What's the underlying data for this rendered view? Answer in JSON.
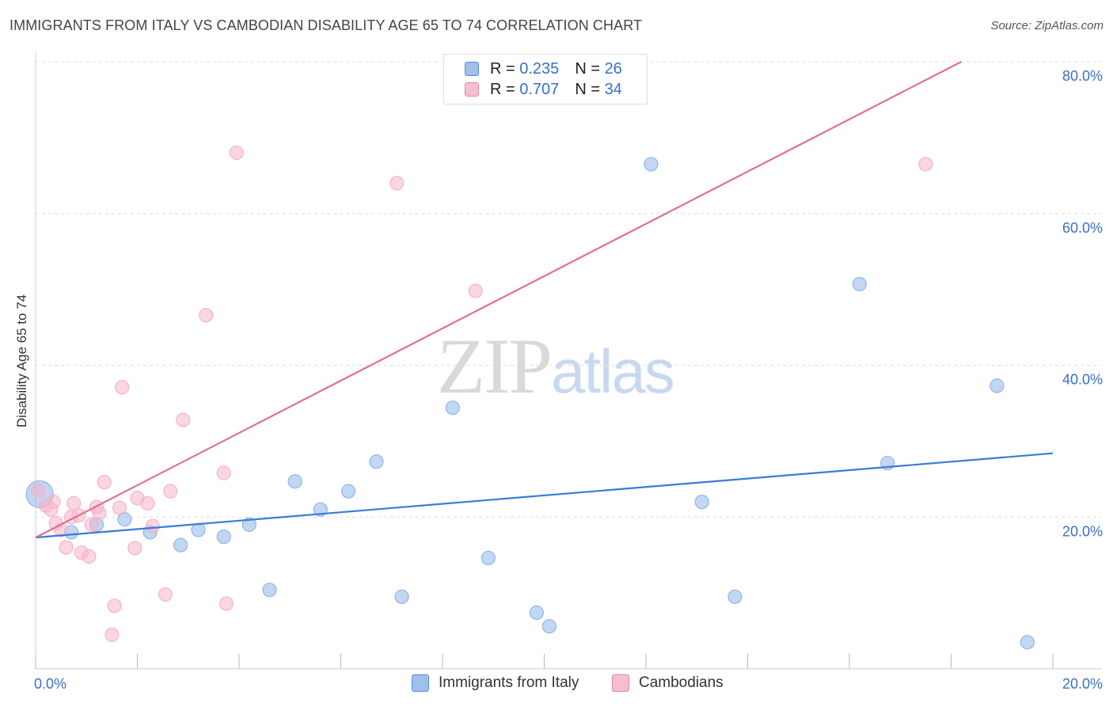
{
  "header": {
    "title": "IMMIGRANTS FROM ITALY VS CAMBODIAN DISABILITY AGE 65 TO 74 CORRELATION CHART",
    "source": "Source: ZipAtlas.com"
  },
  "watermark": {
    "part1": "ZIP",
    "part2": "atlas"
  },
  "legend": {
    "rows": [
      {
        "r_label": "R =",
        "r_value": "0.235",
        "n_label": "N =",
        "n_value": "26"
      },
      {
        "r_label": "R =",
        "r_value": "0.707",
        "n_label": "N =",
        "n_value": "34"
      }
    ]
  },
  "bottom_legend": [
    "Immigrants from Italy",
    "Cambodians"
  ],
  "chart_data": {
    "type": "scatter",
    "title": "IMMIGRANTS FROM ITALY VS CAMBODIAN DISABILITY AGE 65 TO 74 CORRELATION CHART",
    "xlabel": "",
    "ylabel": "Disability Age 65 to 74",
    "xlim": [
      0,
      20
    ],
    "ylim": [
      0,
      80
    ],
    "x_tick_labels": [
      {
        "value": 0,
        "label": "0.0%"
      },
      {
        "value": 20,
        "label": "20.0%"
      }
    ],
    "y_tick_labels": [
      {
        "value": 20,
        "label": "20.0%"
      },
      {
        "value": 40,
        "label": "40.0%"
      },
      {
        "value": 60,
        "label": "60.0%"
      },
      {
        "value": 80,
        "label": "80.0%"
      }
    ],
    "grid": true,
    "legend_position": "top-center",
    "series": [
      {
        "name": "Immigrants from Italy",
        "color": "#8fb6e8",
        "line_color": "#3a7bd5",
        "points": [
          {
            "x": 0.08,
            "y": 23.0,
            "big": true
          },
          {
            "x": 0.7,
            "y": 18.0
          },
          {
            "x": 1.2,
            "y": 19.0
          },
          {
            "x": 1.75,
            "y": 19.7
          },
          {
            "x": 2.25,
            "y": 18.0
          },
          {
            "x": 2.85,
            "y": 16.3
          },
          {
            "x": 3.2,
            "y": 18.3
          },
          {
            "x": 3.7,
            "y": 17.4
          },
          {
            "x": 4.2,
            "y": 19.0
          },
          {
            "x": 4.6,
            "y": 10.4
          },
          {
            "x": 5.1,
            "y": 24.7
          },
          {
            "x": 5.6,
            "y": 21.0
          },
          {
            "x": 6.15,
            "y": 23.4
          },
          {
            "x": 6.7,
            "y": 27.3
          },
          {
            "x": 7.2,
            "y": 9.5
          },
          {
            "x": 8.2,
            "y": 34.4
          },
          {
            "x": 8.9,
            "y": 14.6
          },
          {
            "x": 9.85,
            "y": 7.4
          },
          {
            "x": 10.1,
            "y": 5.6
          },
          {
            "x": 12.1,
            "y": 66.5
          },
          {
            "x": 13.1,
            "y": 22.0
          },
          {
            "x": 13.75,
            "y": 9.5
          },
          {
            "x": 16.2,
            "y": 50.7
          },
          {
            "x": 16.75,
            "y": 27.1
          },
          {
            "x": 18.9,
            "y": 37.3
          },
          {
            "x": 19.5,
            "y": 3.5
          }
        ],
        "trend": {
          "x0": 0,
          "y0": 17.3,
          "x1": 20,
          "y1": 28.4
        }
      },
      {
        "name": "Cambodians",
        "color": "#f5b4c9",
        "line_color": "#e2708f",
        "points": [
          {
            "x": 0.05,
            "y": 23.5
          },
          {
            "x": 0.2,
            "y": 21.5
          },
          {
            "x": 0.3,
            "y": 21.0
          },
          {
            "x": 0.35,
            "y": 22.0
          },
          {
            "x": 0.4,
            "y": 19.2
          },
          {
            "x": 0.5,
            "y": 18.3
          },
          {
            "x": 0.6,
            "y": 16.0
          },
          {
            "x": 0.7,
            "y": 20.0
          },
          {
            "x": 0.75,
            "y": 21.8
          },
          {
            "x": 0.85,
            "y": 20.2
          },
          {
            "x": 0.9,
            "y": 15.3
          },
          {
            "x": 1.05,
            "y": 14.8
          },
          {
            "x": 1.1,
            "y": 19.0
          },
          {
            "x": 1.2,
            "y": 21.3
          },
          {
            "x": 1.25,
            "y": 20.5
          },
          {
            "x": 1.35,
            "y": 24.6
          },
          {
            "x": 1.5,
            "y": 4.5
          },
          {
            "x": 1.55,
            "y": 8.3
          },
          {
            "x": 1.65,
            "y": 21.2
          },
          {
            "x": 1.7,
            "y": 37.1
          },
          {
            "x": 1.95,
            "y": 15.9
          },
          {
            "x": 2.0,
            "y": 22.5
          },
          {
            "x": 2.2,
            "y": 21.8
          },
          {
            "x": 2.3,
            "y": 18.8
          },
          {
            "x": 2.55,
            "y": 9.8
          },
          {
            "x": 2.65,
            "y": 23.4
          },
          {
            "x": 2.9,
            "y": 32.8
          },
          {
            "x": 3.35,
            "y": 46.6
          },
          {
            "x": 3.7,
            "y": 25.8
          },
          {
            "x": 3.75,
            "y": 8.6
          },
          {
            "x": 3.95,
            "y": 68.0
          },
          {
            "x": 7.1,
            "y": 64.0
          },
          {
            "x": 8.65,
            "y": 49.8
          },
          {
            "x": 17.5,
            "y": 66.5
          }
        ],
        "trend": {
          "x0": 0,
          "y0": 17.3,
          "x1": 18.2,
          "y1": 80.0
        }
      }
    ]
  }
}
